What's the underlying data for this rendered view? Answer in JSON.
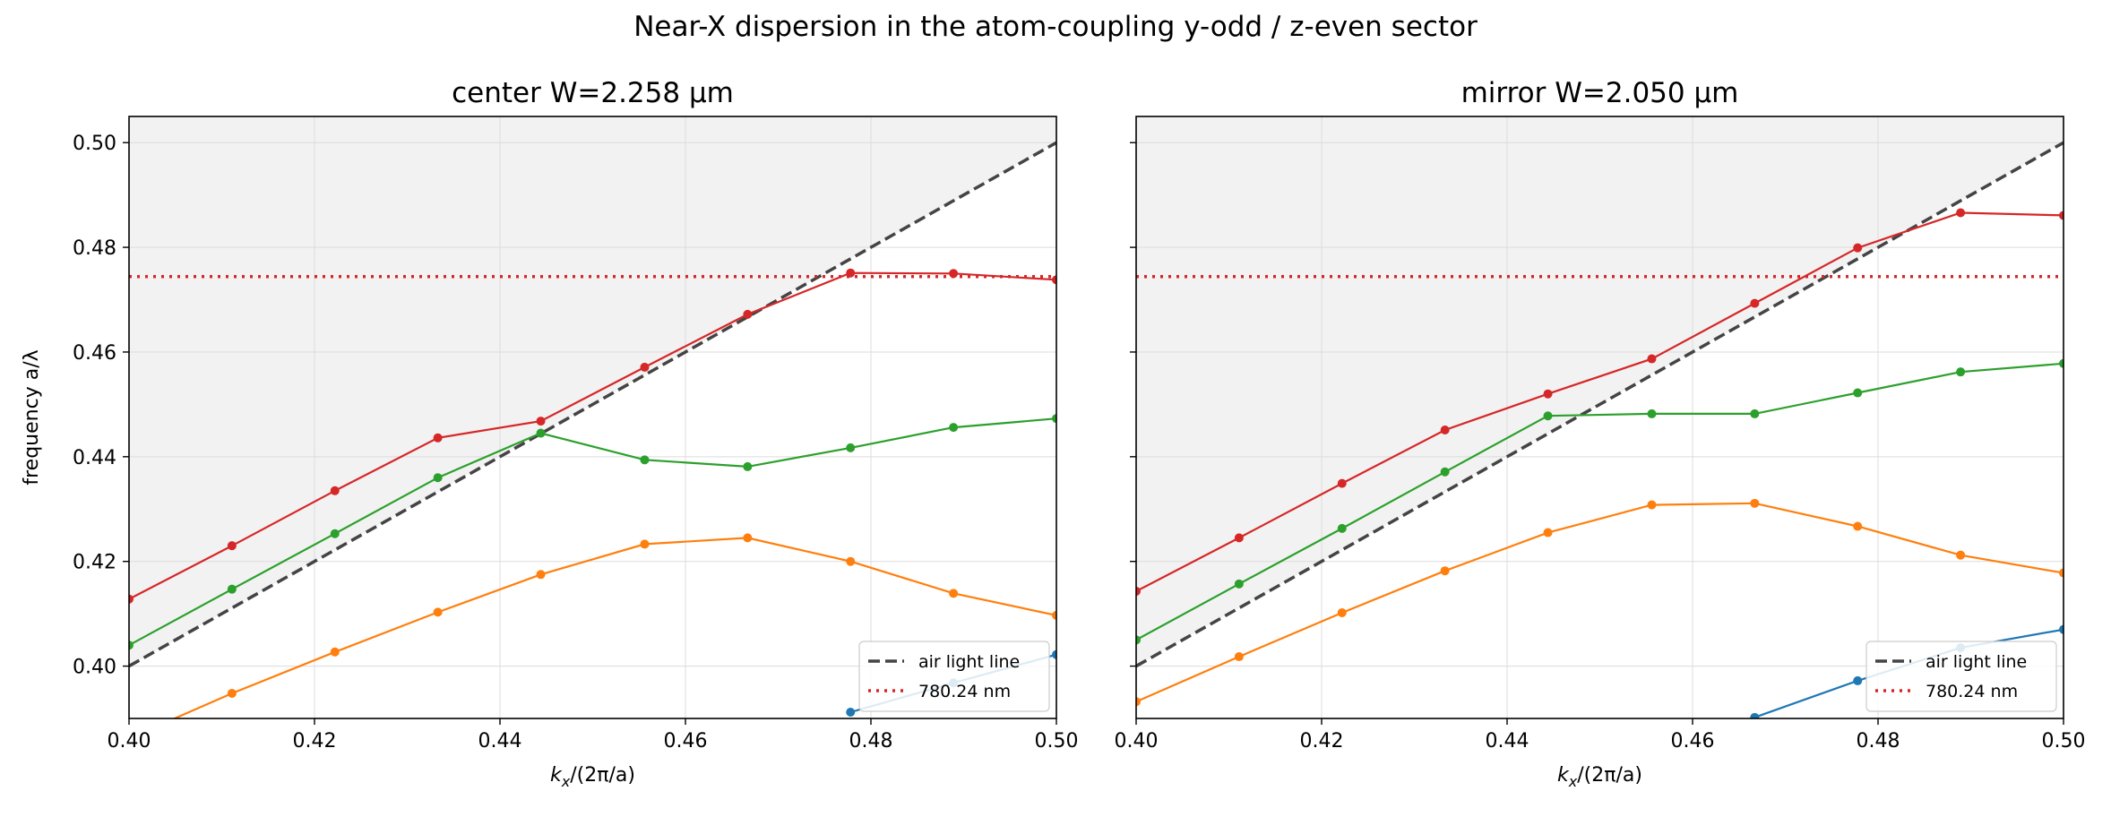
{
  "figure": {
    "suptitle": "Near-X dispersion in the atom-coupling y-odd / z-even sector"
  },
  "chart_data": [
    {
      "type": "line",
      "title": "center W=2.258 µm",
      "xlabel": "k_x/(2π/a)",
      "ylabel": "frequency a/λ",
      "xlim": [
        0.4,
        0.5
      ],
      "ylim": [
        0.39,
        0.505
      ],
      "xticks": [
        0.4,
        0.42,
        0.44,
        0.46,
        0.48,
        0.5
      ],
      "yticks": [
        0.4,
        0.42,
        0.44,
        0.46,
        0.48,
        0.5
      ],
      "xtick_labels": [
        "0.40",
        "0.42",
        "0.44",
        "0.46",
        "0.48",
        "0.50"
      ],
      "ytick_labels": [
        "0.40",
        "0.42",
        "0.44",
        "0.46",
        "0.48",
        "0.50"
      ],
      "grid": true,
      "legend_position": "bottom-right",
      "light_cone_shaded": true,
      "series": [
        {
          "color": "#1f77b4",
          "x": [
            0.4778,
            0.4889,
            0.5
          ],
          "y": [
            0.3912,
            0.3968,
            0.4022
          ]
        },
        {
          "color": "#ff7f0e",
          "x": [
            0.4,
            0.4111,
            0.4222,
            0.4333,
            0.4444,
            0.4556,
            0.4667,
            0.4778,
            0.4889,
            0.5
          ],
          "y": [
            0.3862,
            0.3948,
            0.4027,
            0.4103,
            0.4175,
            0.4233,
            0.4245,
            0.42,
            0.4139,
            0.4097
          ]
        },
        {
          "color": "#2ca02c",
          "x": [
            0.4,
            0.4111,
            0.4222,
            0.4333,
            0.4444,
            0.4556,
            0.4667,
            0.4778,
            0.4889,
            0.5
          ],
          "y": [
            0.404,
            0.4147,
            0.4253,
            0.436,
            0.4445,
            0.4394,
            0.4381,
            0.4417,
            0.4456,
            0.4473
          ]
        },
        {
          "color": "#d62728",
          "x": [
            0.4,
            0.4111,
            0.4222,
            0.4333,
            0.4444,
            0.4556,
            0.4667,
            0.4778,
            0.4889,
            0.5
          ],
          "y": [
            0.4128,
            0.423,
            0.4335,
            0.4436,
            0.4468,
            0.4571,
            0.4672,
            0.4751,
            0.475,
            0.4738
          ]
        }
      ],
      "reference_lines": [
        {
          "label": "air light line",
          "style": "dashed",
          "color": "#444444",
          "x": [
            0.4,
            0.5
          ],
          "y": [
            0.4,
            0.5
          ]
        },
        {
          "label": "780.24 nm",
          "style": "dotted",
          "color": "#d62728",
          "y": 0.4744
        }
      ]
    },
    {
      "type": "line",
      "title": "mirror W=2.050 µm",
      "xlabel": "k_x/(2π/a)",
      "ylabel": "",
      "xlim": [
        0.4,
        0.5
      ],
      "ylim": [
        0.39,
        0.505
      ],
      "xticks": [
        0.4,
        0.42,
        0.44,
        0.46,
        0.48,
        0.5
      ],
      "yticks": [
        0.4,
        0.42,
        0.44,
        0.46,
        0.48,
        0.5
      ],
      "xtick_labels": [
        "0.40",
        "0.42",
        "0.44",
        "0.46",
        "0.48",
        "0.50"
      ],
      "ytick_labels": [],
      "grid": true,
      "legend_position": "bottom-right",
      "light_cone_shaded": true,
      "series": [
        {
          "color": "#1f77b4",
          "x": [
            0.4667,
            0.4778,
            0.4889,
            0.5
          ],
          "y": [
            0.3902,
            0.3972,
            0.4035,
            0.407
          ]
        },
        {
          "color": "#ff7f0e",
          "x": [
            0.4,
            0.4111,
            0.4222,
            0.4333,
            0.4444,
            0.4556,
            0.4667,
            0.4778,
            0.4889,
            0.5
          ],
          "y": [
            0.3932,
            0.4018,
            0.4102,
            0.4182,
            0.4255,
            0.4308,
            0.4311,
            0.4267,
            0.4212,
            0.4178
          ]
        },
        {
          "color": "#2ca02c",
          "x": [
            0.4,
            0.4111,
            0.4222,
            0.4333,
            0.4444,
            0.4556,
            0.4667,
            0.4778,
            0.4889,
            0.5
          ],
          "y": [
            0.405,
            0.4157,
            0.4263,
            0.4371,
            0.4478,
            0.4482,
            0.4482,
            0.4522,
            0.4562,
            0.4578
          ]
        },
        {
          "color": "#d62728",
          "x": [
            0.4,
            0.4111,
            0.4222,
            0.4333,
            0.4444,
            0.4556,
            0.4667,
            0.4778,
            0.4889,
            0.5
          ],
          "y": [
            0.4143,
            0.4245,
            0.4349,
            0.4451,
            0.452,
            0.4587,
            0.4693,
            0.4799,
            0.4866,
            0.4861
          ]
        }
      ],
      "reference_lines": [
        {
          "label": "air light line",
          "style": "dashed",
          "color": "#444444",
          "x": [
            0.4,
            0.5
          ],
          "y": [
            0.4,
            0.5
          ]
        },
        {
          "label": "780.24 nm",
          "style": "dotted",
          "color": "#d62728",
          "y": 0.4744
        }
      ]
    }
  ]
}
